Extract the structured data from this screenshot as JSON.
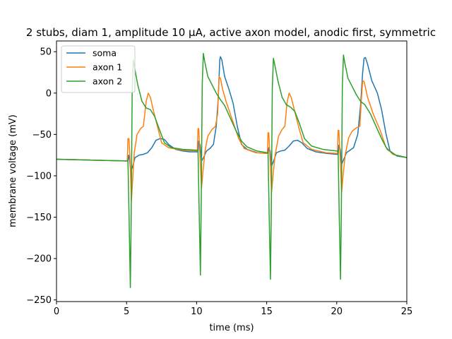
{
  "chart_data": {
    "type": "line",
    "title": "2 stubs, diam 1, amplitude 10 μA, active axon model, anodic first, symmetric",
    "xlabel": "time (ms)",
    "ylabel": "membrane voltage (mV)",
    "xlim": [
      0,
      25
    ],
    "ylim": [
      -252,
      63
    ],
    "xticks": [
      0,
      5,
      10,
      15,
      20,
      25
    ],
    "yticks": [
      -250,
      -200,
      -150,
      -100,
      -50,
      0,
      50
    ],
    "legend": "top-left",
    "grid": false,
    "series": [
      {
        "name": "soma",
        "color": "#1f77b4",
        "points": [
          [
            0,
            -80
          ],
          [
            2.5,
            -81
          ],
          [
            5.0,
            -82
          ],
          [
            5.1,
            -82
          ],
          [
            5.15,
            -75
          ],
          [
            5.2,
            -78
          ],
          [
            5.3,
            -95
          ],
          [
            5.45,
            -88
          ],
          [
            5.6,
            -78
          ],
          [
            5.9,
            -75
          ],
          [
            6.2,
            -74
          ],
          [
            6.5,
            -72
          ],
          [
            6.8,
            -66
          ],
          [
            7.1,
            -57
          ],
          [
            7.4,
            -55
          ],
          [
            7.7,
            -56
          ],
          [
            8.0,
            -62
          ],
          [
            8.5,
            -68
          ],
          [
            9.0,
            -70
          ],
          [
            9.5,
            -71
          ],
          [
            10.0,
            -71
          ],
          [
            10.1,
            -71
          ],
          [
            10.15,
            -58
          ],
          [
            10.25,
            -63
          ],
          [
            10.35,
            -82
          ],
          [
            10.5,
            -78
          ],
          [
            10.7,
            -70
          ],
          [
            10.95,
            -67
          ],
          [
            11.2,
            -62
          ],
          [
            11.4,
            -40
          ],
          [
            11.55,
            -5
          ],
          [
            11.65,
            40
          ],
          [
            11.7,
            44
          ],
          [
            11.8,
            40
          ],
          [
            12.0,
            20
          ],
          [
            12.3,
            5
          ],
          [
            12.6,
            -12
          ],
          [
            12.9,
            -40
          ],
          [
            13.2,
            -62
          ],
          [
            13.6,
            -68
          ],
          [
            14.3,
            -72
          ],
          [
            15.0,
            -73
          ],
          [
            15.1,
            -73
          ],
          [
            15.15,
            -66
          ],
          [
            15.25,
            -70
          ],
          [
            15.35,
            -88
          ],
          [
            15.5,
            -82
          ],
          [
            15.7,
            -72
          ],
          [
            16.0,
            -70
          ],
          [
            16.3,
            -69
          ],
          [
            16.6,
            -64
          ],
          [
            16.9,
            -58
          ],
          [
            17.2,
            -57
          ],
          [
            17.5,
            -60
          ],
          [
            17.9,
            -67
          ],
          [
            18.5,
            -71
          ],
          [
            19.3,
            -73
          ],
          [
            20.0,
            -74
          ],
          [
            20.1,
            -74
          ],
          [
            20.15,
            -63
          ],
          [
            20.25,
            -68
          ],
          [
            20.35,
            -86
          ],
          [
            20.5,
            -80
          ],
          [
            20.7,
            -72
          ],
          [
            20.95,
            -69
          ],
          [
            21.2,
            -66
          ],
          [
            21.5,
            -50
          ],
          [
            21.7,
            -15
          ],
          [
            21.85,
            25
          ],
          [
            21.95,
            42
          ],
          [
            22.05,
            43
          ],
          [
            22.2,
            35
          ],
          [
            22.5,
            15
          ],
          [
            22.9,
            0
          ],
          [
            23.2,
            -20
          ],
          [
            23.5,
            -48
          ],
          [
            23.8,
            -70
          ],
          [
            24.3,
            -76
          ],
          [
            25.0,
            -78
          ]
        ]
      },
      {
        "name": "axon 1",
        "color": "#ff7f0e",
        "points": [
          [
            0,
            -80
          ],
          [
            2.5,
            -81
          ],
          [
            5.0,
            -82
          ],
          [
            5.05,
            -82
          ],
          [
            5.1,
            -55
          ],
          [
            5.17,
            -55
          ],
          [
            5.25,
            -80
          ],
          [
            5.35,
            -130
          ],
          [
            5.45,
            -100
          ],
          [
            5.55,
            -72
          ],
          [
            5.75,
            -50
          ],
          [
            6.0,
            -43
          ],
          [
            6.2,
            -40
          ],
          [
            6.4,
            -10
          ],
          [
            6.55,
            0
          ],
          [
            6.7,
            -5
          ],
          [
            6.9,
            -20
          ],
          [
            7.2,
            -40
          ],
          [
            7.5,
            -60
          ],
          [
            8.0,
            -66
          ],
          [
            9.0,
            -69
          ],
          [
            10.0,
            -70
          ],
          [
            10.05,
            -70
          ],
          [
            10.1,
            -43
          ],
          [
            10.15,
            -43
          ],
          [
            10.25,
            -80
          ],
          [
            10.35,
            -115
          ],
          [
            10.45,
            -95
          ],
          [
            10.6,
            -70
          ],
          [
            10.8,
            -52
          ],
          [
            11.1,
            -44
          ],
          [
            11.35,
            -40
          ],
          [
            11.5,
            -25
          ],
          [
            11.6,
            20
          ],
          [
            11.7,
            18
          ],
          [
            11.85,
            5
          ],
          [
            12.1,
            -10
          ],
          [
            12.5,
            -30
          ],
          [
            13.0,
            -55
          ],
          [
            13.4,
            -67
          ],
          [
            14.2,
            -72
          ],
          [
            15.0,
            -73
          ],
          [
            15.05,
            -73
          ],
          [
            15.1,
            -48
          ],
          [
            15.15,
            -48
          ],
          [
            15.25,
            -82
          ],
          [
            15.35,
            -120
          ],
          [
            15.45,
            -100
          ],
          [
            15.6,
            -75
          ],
          [
            15.85,
            -52
          ],
          [
            16.1,
            -44
          ],
          [
            16.3,
            -40
          ],
          [
            16.45,
            -12
          ],
          [
            16.6,
            0
          ],
          [
            16.75,
            -5
          ],
          [
            17.0,
            -22
          ],
          [
            17.3,
            -42
          ],
          [
            17.6,
            -60
          ],
          [
            18.2,
            -68
          ],
          [
            19.2,
            -72
          ],
          [
            20.0,
            -73
          ],
          [
            20.05,
            -73
          ],
          [
            20.1,
            -45
          ],
          [
            20.15,
            -45
          ],
          [
            20.25,
            -80
          ],
          [
            20.35,
            -120
          ],
          [
            20.45,
            -100
          ],
          [
            20.6,
            -75
          ],
          [
            20.85,
            -54
          ],
          [
            21.1,
            -46
          ],
          [
            21.4,
            -42
          ],
          [
            21.65,
            -40
          ],
          [
            21.75,
            -10
          ],
          [
            21.85,
            15
          ],
          [
            21.95,
            14
          ],
          [
            22.2,
            -5
          ],
          [
            22.6,
            -25
          ],
          [
            23.1,
            -45
          ],
          [
            23.5,
            -65
          ],
          [
            24.0,
            -74
          ],
          [
            25.0,
            -78
          ]
        ]
      },
      {
        "name": "axon 2",
        "color": "#2ca02c",
        "points": [
          [
            0,
            -80
          ],
          [
            2.5,
            -81
          ],
          [
            5.0,
            -82
          ],
          [
            5.1,
            -82
          ],
          [
            5.18,
            -150
          ],
          [
            5.27,
            -235
          ],
          [
            5.33,
            -150
          ],
          [
            5.4,
            0
          ],
          [
            5.48,
            40
          ],
          [
            5.58,
            30
          ],
          [
            5.8,
            10
          ],
          [
            6.1,
            -10
          ],
          [
            6.4,
            -18
          ],
          [
            6.7,
            -20
          ],
          [
            7.0,
            -28
          ],
          [
            7.3,
            -42
          ],
          [
            7.7,
            -60
          ],
          [
            8.2,
            -66
          ],
          [
            9.0,
            -68
          ],
          [
            10.0,
            -69
          ],
          [
            10.1,
            -69
          ],
          [
            10.18,
            -140
          ],
          [
            10.27,
            -220
          ],
          [
            10.33,
            -130
          ],
          [
            10.4,
            10
          ],
          [
            10.48,
            48
          ],
          [
            10.58,
            38
          ],
          [
            10.8,
            20
          ],
          [
            11.1,
            10
          ],
          [
            11.4,
            0
          ],
          [
            11.7,
            -8
          ],
          [
            12.0,
            -15
          ],
          [
            12.4,
            -30
          ],
          [
            12.8,
            -45
          ],
          [
            13.2,
            -58
          ],
          [
            13.6,
            -65
          ],
          [
            14.3,
            -70
          ],
          [
            15.0,
            -72
          ],
          [
            15.1,
            -72
          ],
          [
            15.18,
            -150
          ],
          [
            15.27,
            -225
          ],
          [
            15.33,
            -140
          ],
          [
            15.4,
            5
          ],
          [
            15.48,
            42
          ],
          [
            15.58,
            34
          ],
          [
            15.8,
            15
          ],
          [
            16.1,
            -5
          ],
          [
            16.4,
            -14
          ],
          [
            16.7,
            -17
          ],
          [
            17.0,
            -22
          ],
          [
            17.3,
            -35
          ],
          [
            17.7,
            -55
          ],
          [
            18.2,
            -64
          ],
          [
            19.0,
            -68
          ],
          [
            20.0,
            -70
          ],
          [
            20.1,
            -70
          ],
          [
            20.18,
            -150
          ],
          [
            20.27,
            -225
          ],
          [
            20.33,
            -140
          ],
          [
            20.4,
            8
          ],
          [
            20.48,
            46
          ],
          [
            20.58,
            36
          ],
          [
            20.8,
            18
          ],
          [
            21.1,
            8
          ],
          [
            21.4,
            -2
          ],
          [
            21.7,
            -10
          ],
          [
            22.0,
            -14
          ],
          [
            22.4,
            -25
          ],
          [
            22.8,
            -40
          ],
          [
            23.2,
            -55
          ],
          [
            23.6,
            -68
          ],
          [
            24.2,
            -75
          ],
          [
            25.0,
            -78
          ]
        ]
      }
    ]
  }
}
